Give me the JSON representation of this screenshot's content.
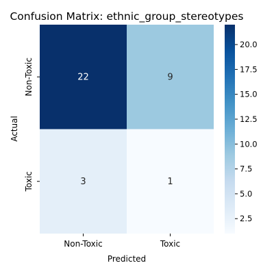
{
  "chart_data": {
    "type": "heatmap",
    "title": "Confusion Matrix: ethnic_group_stereotypes",
    "xlabel": "Predicted",
    "ylabel": "Actual",
    "x_categories": [
      "Non-Toxic",
      "Toxic"
    ],
    "y_categories": [
      "Non-Toxic",
      "Toxic"
    ],
    "matrix": [
      [
        22,
        9
      ],
      [
        3,
        1
      ]
    ],
    "colormap": "Blues",
    "colorbar": {
      "vmin": 1,
      "vmax": 22,
      "ticks": [
        2.5,
        5.0,
        7.5,
        10.0,
        12.5,
        15.0,
        17.5,
        20.0
      ],
      "tick_labels": [
        "2.5",
        "5.0",
        "7.5",
        "10.0",
        "12.5",
        "15.0",
        "17.5",
        "20.0"
      ]
    }
  }
}
